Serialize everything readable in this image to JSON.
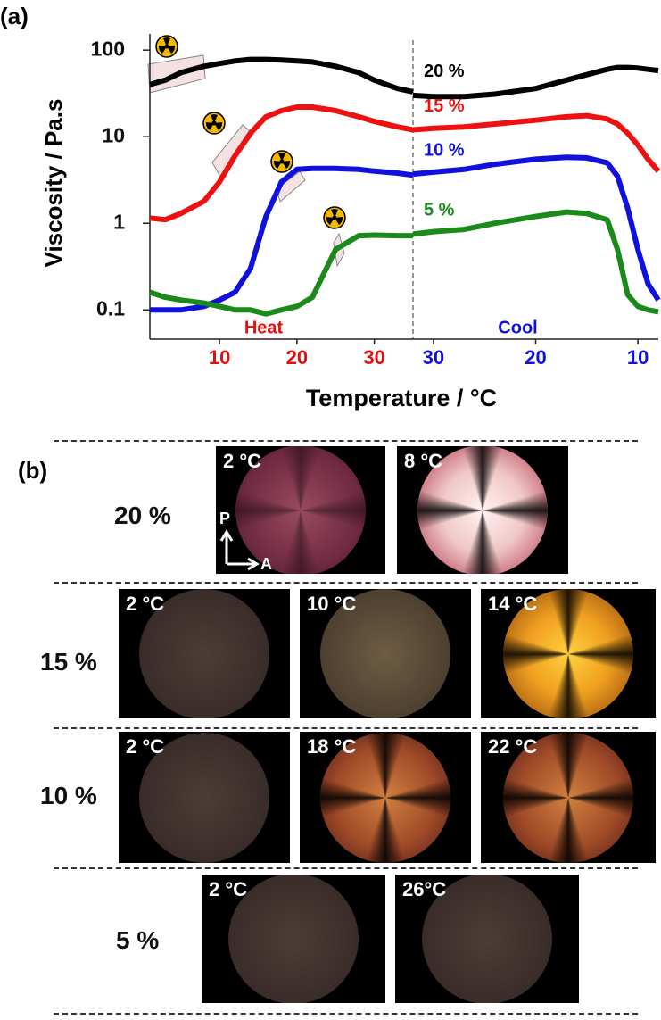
{
  "panel_a_label": "(a)",
  "chart_data": [
    {
      "type": "line",
      "log_y": true,
      "ylabel": "Viscosity / Pa.s",
      "xlabel": "Temperature / °C",
      "section_label": "Heat",
      "tick_color": "#e01010",
      "xlim": [
        1,
        35
      ],
      "xticks": [
        10,
        20,
        30
      ],
      "ylim": [
        0.046,
        140
      ],
      "yticks": [
        0.1,
        1,
        10,
        100
      ],
      "x": [
        1,
        3,
        5,
        8,
        10,
        12,
        14,
        16,
        18,
        20,
        22,
        25,
        28,
        30,
        33,
        35
      ],
      "series": [
        {
          "color": "#000000",
          "values": [
            40,
            45,
            55,
            65,
            70,
            75,
            78,
            78,
            77,
            75,
            73,
            65,
            55,
            45,
            36,
            33
          ]
        },
        {
          "color": "#ee1111",
          "values": [
            1.15,
            1.1,
            1.3,
            1.8,
            3,
            6,
            11,
            17,
            20,
            22,
            22,
            20,
            17,
            15,
            13,
            12
          ]
        },
        {
          "color": "#1111dd",
          "values": [
            0.1,
            0.1,
            0.1,
            0.11,
            0.13,
            0.16,
            0.3,
            1.2,
            3,
            4.2,
            4.3,
            4.3,
            4.2,
            4,
            3.8,
            3.6
          ]
        },
        {
          "color": "#1a8a1a",
          "values": [
            0.16,
            0.14,
            0.13,
            0.12,
            0.11,
            0.1,
            0.1,
            0.09,
            0.1,
            0.11,
            0.14,
            0.5,
            0.72,
            0.73,
            0.72,
            0.72
          ]
        }
      ]
    },
    {
      "type": "line",
      "log_y": true,
      "section_label": "Cool",
      "tick_color": "#1111dd",
      "xlim": [
        32,
        8
      ],
      "xticks": [
        30,
        20,
        10
      ],
      "ylim": [
        0.046,
        140
      ],
      "x": [
        32,
        30,
        27,
        24,
        20,
        17,
        15,
        13,
        12,
        11,
        10,
        9,
        8
      ],
      "series": [
        {
          "name": "20 %",
          "color": "#000000",
          "values": [
            30,
            29,
            29,
            31,
            36,
            45,
            52,
            60,
            63,
            63,
            62,
            60,
            58
          ]
        },
        {
          "name": "15 %",
          "color": "#ee1111",
          "values": [
            12,
            12.5,
            13,
            14,
            15.5,
            17,
            17.5,
            16,
            14,
            11,
            8,
            5.5,
            4
          ]
        },
        {
          "name": "10 %",
          "color": "#1111dd",
          "values": [
            3.7,
            3.9,
            4.2,
            4.8,
            5.5,
            5.8,
            5.7,
            5,
            3.5,
            1.5,
            0.5,
            0.2,
            0.13
          ]
        },
        {
          "name": "5 %",
          "color": "#1a8a1a",
          "values": [
            0.75,
            0.8,
            0.85,
            1.0,
            1.2,
            1.35,
            1.3,
            1.1,
            0.5,
            0.15,
            0.11,
            0.1,
            0.095
          ]
        }
      ]
    }
  ],
  "panel_b": {
    "label": "(b)",
    "polarizer_label": "P",
    "analyzer_label": "A",
    "rows": [
      {
        "label": "20 %",
        "images": [
          "2 °C",
          "8 °C"
        ]
      },
      {
        "label": "15 %",
        "images": [
          "2 °C",
          "10 °C",
          "14 °C"
        ]
      },
      {
        "label": "10 %",
        "images": [
          "2 °C",
          "18 °C",
          "22 °C"
        ]
      },
      {
        "label": "5 %",
        "images": [
          "2 °C",
          "26°C"
        ]
      }
    ]
  }
}
